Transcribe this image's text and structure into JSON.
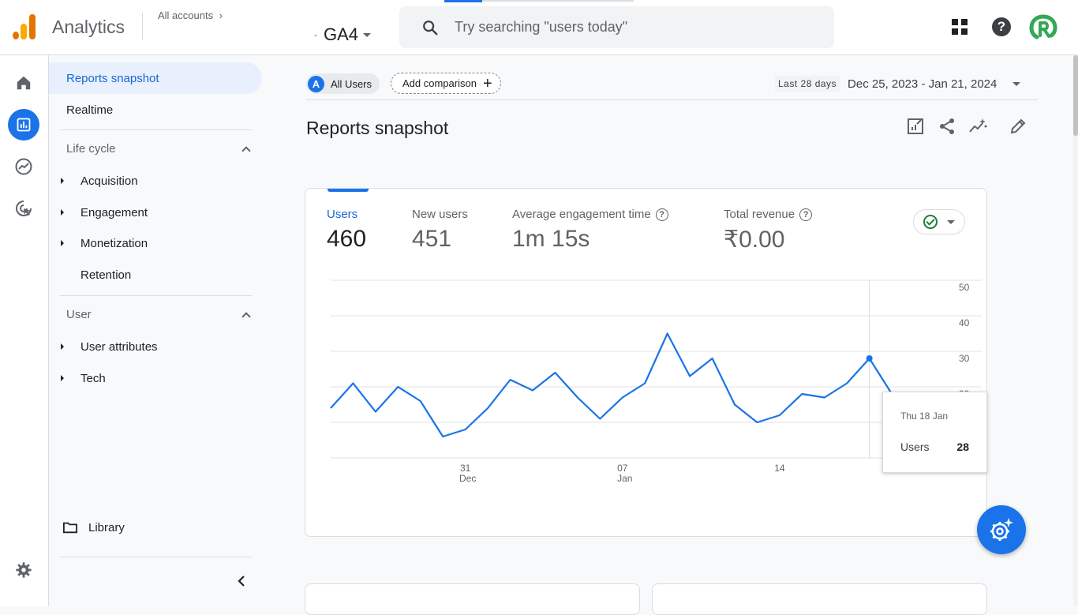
{
  "header": {
    "app_title": "Analytics",
    "all_accounts": "All accounts",
    "property_prefix": "-",
    "property": "GA4",
    "search_placeholder": "Try searching \"users today\""
  },
  "sidenav": {
    "reports_snapshot": "Reports snapshot",
    "realtime": "Realtime",
    "lifecycle": {
      "title": "Life cycle",
      "items": [
        "Acquisition",
        "Engagement",
        "Monetization",
        "Retention"
      ]
    },
    "user": {
      "title": "User",
      "items": [
        "User attributes",
        "Tech"
      ]
    },
    "library": "Library"
  },
  "toolbar": {
    "all_users_letter": "A",
    "all_users": "All Users",
    "add_comparison": "Add comparison",
    "date_label": "Last 28 days",
    "date_value": "Dec 25, 2023 - Jan 21, 2024"
  },
  "page_title": "Reports snapshot",
  "metrics": [
    {
      "label": "Users",
      "value": "460"
    },
    {
      "label": "New users",
      "value": "451"
    },
    {
      "label": "Average engagement time",
      "value": "1m 15s"
    },
    {
      "label": "Total revenue",
      "value": "₹0.00"
    }
  ],
  "tooltip": {
    "date": "Thu 18 Jan",
    "series": "Users",
    "value": "28"
  },
  "chart_data": {
    "type": "line",
    "ylim": [
      0,
      50
    ],
    "yticks": [
      0,
      10,
      20,
      30,
      40,
      50
    ],
    "xticks": [
      {
        "index": 6,
        "day": "31",
        "month": "Dec"
      },
      {
        "index": 13,
        "day": "07",
        "month": "Jan"
      },
      {
        "index": 20,
        "day": "14",
        "month": ""
      }
    ],
    "series": [
      {
        "name": "Users",
        "color": "#1a73e8",
        "values": [
          14,
          21,
          13,
          20,
          16,
          6,
          8,
          14,
          22,
          19,
          24,
          17,
          11,
          17,
          21,
          35,
          23,
          28,
          15,
          10,
          12,
          18,
          17,
          21,
          28,
          18,
          9,
          3
        ]
      }
    ],
    "highlight_index": 24
  }
}
